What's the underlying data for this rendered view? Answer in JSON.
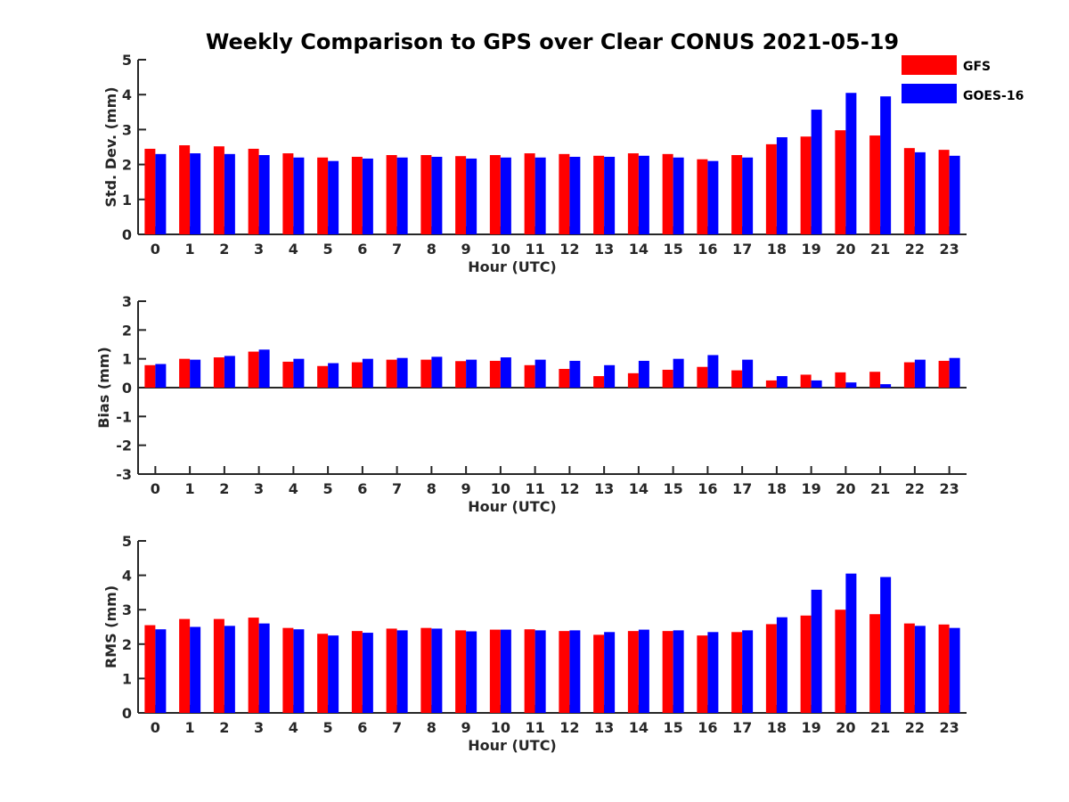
{
  "title": "Weekly Comparison to GPS over Clear CONUS 2021-05-19",
  "colors": {
    "GFS": "#ff0000",
    "GOES-16": "#0000ff"
  },
  "legend": {
    "placement": "top-right",
    "entries": [
      "GFS",
      "GOES-16"
    ]
  },
  "chart_data": [
    {
      "type": "bar",
      "ylabel": "Std. Dev. (mm)",
      "xlabel": "Hour (UTC)",
      "ylim": [
        0,
        5
      ],
      "yticks": [
        "0",
        "1",
        "2",
        "3",
        "4",
        "5"
      ],
      "categories": [
        "0",
        "1",
        "2",
        "3",
        "4",
        "5",
        "6",
        "7",
        "8",
        "9",
        "10",
        "11",
        "12",
        "13",
        "14",
        "15",
        "16",
        "17",
        "18",
        "19",
        "20",
        "21",
        "22",
        "23"
      ],
      "series": [
        {
          "name": "GFS",
          "values": [
            2.45,
            2.55,
            2.52,
            2.45,
            2.32,
            2.2,
            2.22,
            2.27,
            2.27,
            2.24,
            2.27,
            2.32,
            2.3,
            2.25,
            2.32,
            2.3,
            2.15,
            2.27,
            2.58,
            2.8,
            2.98,
            2.83,
            2.47,
            2.42
          ]
        },
        {
          "name": "GOES-16",
          "values": [
            2.3,
            2.32,
            2.3,
            2.27,
            2.2,
            2.1,
            2.17,
            2.2,
            2.22,
            2.17,
            2.2,
            2.2,
            2.22,
            2.22,
            2.25,
            2.2,
            2.1,
            2.2,
            2.78,
            3.57,
            4.05,
            3.95,
            2.35,
            2.25
          ]
        }
      ]
    },
    {
      "type": "bar",
      "ylabel": "Bias (mm)",
      "xlabel": "Hour (UTC)",
      "ylim": [
        -3,
        3
      ],
      "yticks": [
        "-3",
        "-2",
        "-1",
        "0",
        "1",
        "2",
        "3"
      ],
      "categories": [
        "0",
        "1",
        "2",
        "3",
        "4",
        "5",
        "6",
        "7",
        "8",
        "9",
        "10",
        "11",
        "12",
        "13",
        "14",
        "15",
        "16",
        "17",
        "18",
        "19",
        "20",
        "21",
        "22",
        "23"
      ],
      "series": [
        {
          "name": "GFS",
          "values": [
            0.78,
            1.0,
            1.05,
            1.25,
            0.9,
            0.75,
            0.88,
            0.97,
            0.97,
            0.92,
            0.93,
            0.78,
            0.65,
            0.4,
            0.5,
            0.62,
            0.72,
            0.6,
            0.25,
            0.45,
            0.53,
            0.55,
            0.88,
            0.93
          ]
        },
        {
          "name": "GOES-16",
          "values": [
            0.82,
            0.97,
            1.1,
            1.32,
            1.0,
            0.85,
            1.0,
            1.03,
            1.07,
            0.97,
            1.05,
            0.97,
            0.93,
            0.78,
            0.93,
            1.0,
            1.13,
            0.97,
            0.4,
            0.25,
            0.18,
            0.12,
            0.97,
            1.03
          ]
        }
      ]
    },
    {
      "type": "bar",
      "ylabel": "RMS (mm)",
      "xlabel": "Hour (UTC)",
      "ylim": [
        0,
        5
      ],
      "yticks": [
        "0",
        "1",
        "2",
        "3",
        "4",
        "5"
      ],
      "categories": [
        "0",
        "1",
        "2",
        "3",
        "4",
        "5",
        "6",
        "7",
        "8",
        "9",
        "10",
        "11",
        "12",
        "13",
        "14",
        "15",
        "16",
        "17",
        "18",
        "19",
        "20",
        "21",
        "22",
        "23"
      ],
      "series": [
        {
          "name": "GFS",
          "values": [
            2.55,
            2.73,
            2.73,
            2.77,
            2.47,
            2.3,
            2.38,
            2.45,
            2.47,
            2.4,
            2.42,
            2.43,
            2.38,
            2.27,
            2.38,
            2.38,
            2.25,
            2.35,
            2.58,
            2.83,
            3.0,
            2.87,
            2.6,
            2.57
          ]
        },
        {
          "name": "GOES-16",
          "values": [
            2.43,
            2.5,
            2.53,
            2.6,
            2.43,
            2.25,
            2.33,
            2.4,
            2.45,
            2.37,
            2.42,
            2.4,
            2.4,
            2.35,
            2.42,
            2.4,
            2.35,
            2.4,
            2.78,
            3.58,
            4.05,
            3.95,
            2.53,
            2.47
          ]
        }
      ]
    }
  ]
}
